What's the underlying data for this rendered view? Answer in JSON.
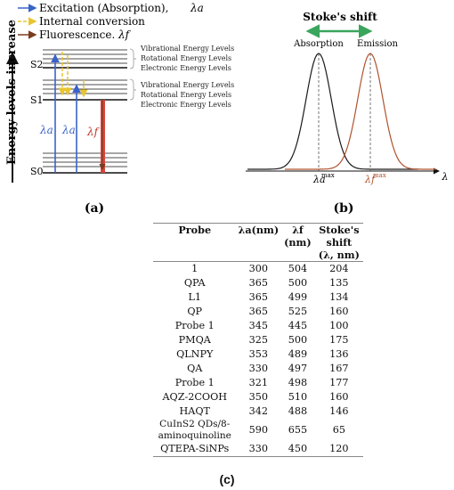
{
  "panel_a": {
    "legend": {
      "excitation": "Excitation (Absorption),",
      "excitation_symbol": "λa",
      "internal": "Internal conversion",
      "fluorescence": "Fluorescence.",
      "fluorescence_symbol": "λf"
    },
    "y_axis_label": "Energy levels increase",
    "state_labels": {
      "s2": "S2",
      "s1": "S1",
      "s0": "S0"
    },
    "level_group_upper": [
      "Vibrational Energy Levels",
      "Rotational Energy Levels",
      "Electronic Energy Levels"
    ],
    "level_group_lower": [
      "Vibrational Energy Levels",
      "Rotational Energy Levels",
      "Electronic Energy Levels"
    ],
    "arrow_labels": {
      "a1": "λa",
      "a2": "λa",
      "f": "λf"
    },
    "caption": "(a)",
    "colors": {
      "excitation": "#3a63c8",
      "internal": "#e8c531",
      "fluorescence": "#c0392b",
      "fluorescence_dark": "#7a3b1e"
    }
  },
  "panel_b": {
    "title": "Stoke's shift",
    "absorption_label": "Absorption",
    "emission_label": "Emission",
    "abs_max_label": "λa",
    "abs_max_sup": "max",
    "em_max_label": "λf",
    "em_max_sup": "max",
    "x_axis_symbol": "λ",
    "caption": "(b)",
    "colors": {
      "arrow": "#3aa55c",
      "absorption": "#1a1a1a",
      "emission": "#b0532f"
    }
  },
  "panel_c": {
    "caption": "(c)",
    "headers": {
      "probe": "Probe",
      "la": "λa(nm)",
      "lf_1": "λf",
      "lf_2": "(nm)",
      "shift_1": "Stoke's",
      "shift_2": "shift",
      "shift_3": "(λ, nm)"
    },
    "rows": [
      {
        "probe": "1",
        "la": "300",
        "lf": "504",
        "shift": "204"
      },
      {
        "probe": "QPA",
        "la": "365",
        "lf": "500",
        "shift": "135"
      },
      {
        "probe": "L1",
        "la": "365",
        "lf": "499",
        "shift": "134"
      },
      {
        "probe": "QP",
        "la": "365",
        "lf": "525",
        "shift": "160"
      },
      {
        "probe": "Probe 1",
        "la": "345",
        "lf": "445",
        "shift": "100"
      },
      {
        "probe": "PMQA",
        "la": "325",
        "lf": "500",
        "shift": "175"
      },
      {
        "probe": "QLNPY",
        "la": "353",
        "lf": "489",
        "shift": "136"
      },
      {
        "probe": "QA",
        "la": "330",
        "lf": "497",
        "shift": "167"
      },
      {
        "probe": "Probe 1",
        "la": "321",
        "lf": "498",
        "shift": "177"
      },
      {
        "probe": "AQZ-2COOH",
        "la": "350",
        "lf": "510",
        "shift": "160"
      },
      {
        "probe": "HAQT",
        "la": "342",
        "lf": "488",
        "shift": "146"
      },
      {
        "probe": "CuInS2 QDs/8-aminoquinoline",
        "la": "590",
        "lf": "655",
        "shift": "65"
      },
      {
        "probe": "QTEPA-SiNPs",
        "la": "330",
        "lf": "450",
        "shift": "120"
      }
    ]
  }
}
